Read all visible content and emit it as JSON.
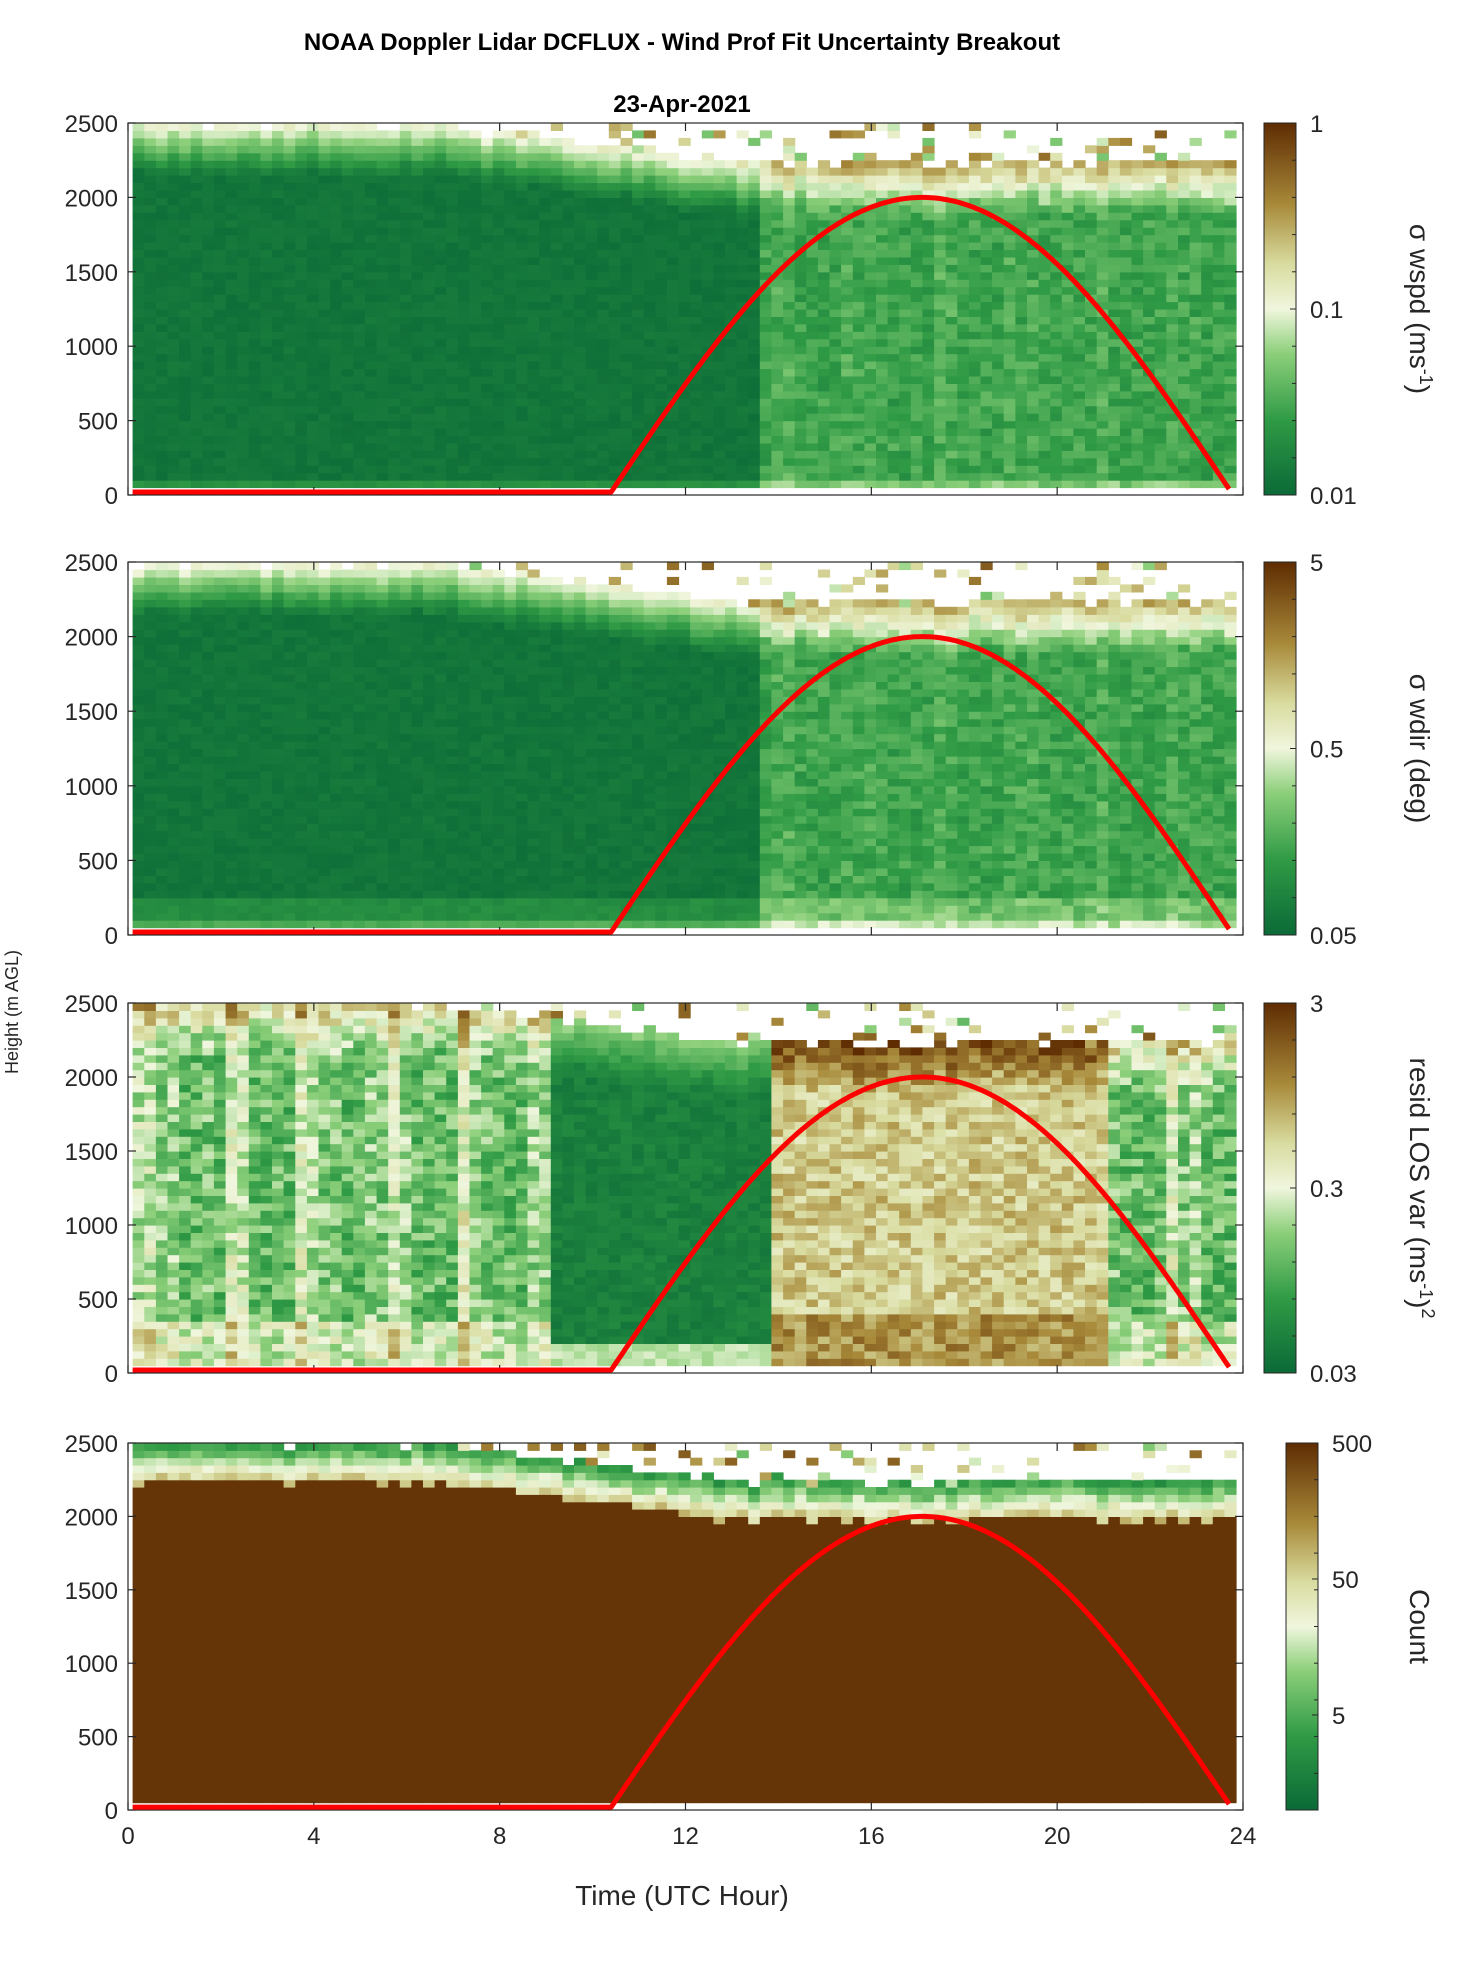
{
  "figure": {
    "title": "NOAA Doppler Lidar DCFLUX - Wind Prof Fit Uncertainty Breakout",
    "date": "23-Apr-2021",
    "shared_ylabel": "Height (m AGL)",
    "xlabel": "Time (UTC Hour)"
  },
  "colors": {
    "sun_curve": "#ff0000",
    "dark_green": "#0b6a37",
    "light": "#f4f8e6",
    "brown": "#5f2c02",
    "count_fill": "#632e03"
  },
  "chart_data": [
    {
      "type": "heatmap",
      "name": "panel-wspd",
      "colorbar_label": "σ wspd (ms",
      "colorbar_label_sup": "-1",
      "colorbar_label_end": ")",
      "colorbar_scale": "log",
      "colorbar_range": [
        0.01,
        1
      ],
      "colorbar_ticks": [
        "1",
        "0.1",
        "0.01"
      ],
      "y_ticks": [
        "2500",
        "2000",
        "1500",
        "1000",
        "500",
        "0"
      ],
      "ylim": [
        0,
        2500
      ],
      "xlim": [
        0,
        24
      ],
      "x_ticks": []
    },
    {
      "type": "heatmap",
      "name": "panel-wdir",
      "colorbar_label": "σ wdir (deg)",
      "colorbar_label_sup": "",
      "colorbar_label_end": "",
      "colorbar_scale": "log",
      "colorbar_range": [
        0.05,
        5
      ],
      "colorbar_ticks": [
        "5",
        "0.5",
        "0.05"
      ],
      "y_ticks": [
        "2500",
        "2000",
        "1500",
        "1000",
        "500",
        "0"
      ],
      "ylim": [
        0,
        2500
      ],
      "xlim": [
        0,
        24
      ],
      "x_ticks": []
    },
    {
      "type": "heatmap",
      "name": "panel-resid",
      "colorbar_label": "resid LOS var (ms",
      "colorbar_label_sup": "-1",
      "colorbar_label_end": ")",
      "colorbar_label_sup2": "2",
      "colorbar_scale": "log",
      "colorbar_range": [
        0.03,
        3
      ],
      "colorbar_ticks": [
        "3",
        "0.3",
        "0.03"
      ],
      "y_ticks": [
        "2500",
        "2000",
        "1500",
        "1000",
        "500",
        "0"
      ],
      "ylim": [
        0,
        2500
      ],
      "xlim": [
        0,
        24
      ],
      "x_ticks": []
    },
    {
      "type": "heatmap",
      "name": "panel-count",
      "colorbar_label": "Count",
      "colorbar_label_sup": "",
      "colorbar_label_end": "",
      "colorbar_scale": "log",
      "colorbar_range": [
        1,
        500
      ],
      "colorbar_ticks": [
        "500",
        "50",
        "5"
      ],
      "y_ticks": [
        "2500",
        "2000",
        "1500",
        "1000",
        "500",
        "0"
      ],
      "ylim": [
        0,
        2500
      ],
      "xlim": [
        0,
        24
      ],
      "x_ticks": [
        "0",
        "4",
        "8",
        "12",
        "16",
        "20",
        "24"
      ]
    }
  ],
  "sun_curve": {
    "sunrise_hour": 10.4,
    "peak_hour": 17.1,
    "peak_height": 2000,
    "end_hour": 23.7,
    "end_height": 40
  }
}
